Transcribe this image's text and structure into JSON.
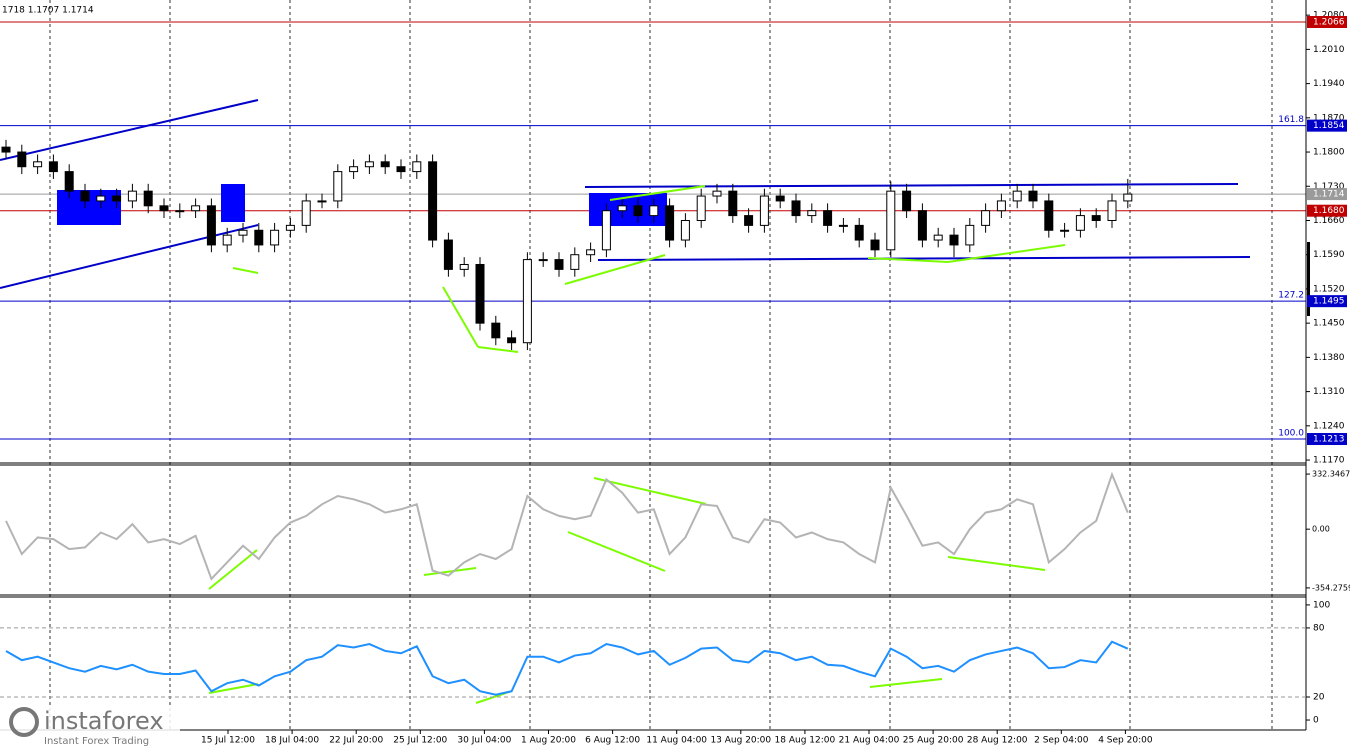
{
  "chart_data": {
    "type": "candlestick",
    "header": "1718 1.1707 1.1714",
    "up_color": "#ffffff",
    "down_color": "#000000",
    "ylim": [
      1.1166,
      1.2111
    ],
    "yticks": [
      {
        "value": 1.208,
        "label": "1.2080"
      },
      {
        "value": 1.201,
        "label": "1.2010"
      },
      {
        "value": 1.194,
        "label": "1.1940"
      },
      {
        "value": 1.187,
        "label": "1.1870"
      },
      {
        "value": 1.18,
        "label": "1.1800"
      },
      {
        "value": 1.173,
        "label": "1.1730"
      },
      {
        "value": 1.166,
        "label": "1.1660"
      },
      {
        "value": 1.159,
        "label": "1.1590"
      },
      {
        "value": 1.152,
        "label": "1.1520"
      },
      {
        "value": 1.145,
        "label": "1.1450"
      },
      {
        "value": 1.138,
        "label": "1.1380"
      },
      {
        "value": 1.131,
        "label": "1.1310"
      },
      {
        "value": 1.124,
        "label": "1.1240"
      },
      {
        "value": 1.117,
        "label": "1.1170"
      }
    ],
    "levels": [
      {
        "value": 1.2066,
        "label": "1.2066",
        "color": "#c00000"
      },
      {
        "value": 1.1854,
        "label": "1.1854",
        "color": "#0000c8",
        "fib": "161.8"
      },
      {
        "value": 1.1714,
        "label": "1.1714",
        "color": "#9a9a9a"
      },
      {
        "value": 1.168,
        "label": "1.1680",
        "color": "#c00000"
      },
      {
        "value": 1.1495,
        "label": "1.1495",
        "color": "#0000c8",
        "fib": "127.2"
      },
      {
        "value": 1.1213,
        "label": "1.1213",
        "color": "#0000c8",
        "fib": "100.0"
      }
    ],
    "candles": [
      [
        1.181,
        1.1825,
        1.1785,
        1.18
      ],
      [
        1.18,
        1.1815,
        1.1755,
        1.177
      ],
      [
        1.177,
        1.1795,
        1.1755,
        1.178
      ],
      [
        1.178,
        1.1795,
        1.1745,
        1.176
      ],
      [
        1.176,
        1.1775,
        1.1705,
        1.172
      ],
      [
        1.172,
        1.1735,
        1.1685,
        1.17
      ],
      [
        1.17,
        1.1725,
        1.1685,
        1.171
      ],
      [
        1.171,
        1.1725,
        1.1685,
        1.17
      ],
      [
        1.17,
        1.1735,
        1.1685,
        1.172
      ],
      [
        1.172,
        1.1735,
        1.1675,
        1.169
      ],
      [
        1.169,
        1.1705,
        1.1665,
        1.168
      ],
      [
        1.168,
        1.1695,
        1.1665,
        1.168
      ],
      [
        1.168,
        1.1705,
        1.1665,
        1.169
      ],
      [
        1.169,
        1.1705,
        1.1595,
        1.161
      ],
      [
        1.161,
        1.1645,
        1.1595,
        1.163
      ],
      [
        1.163,
        1.1655,
        1.1615,
        1.164
      ],
      [
        1.164,
        1.1655,
        1.1595,
        1.161
      ],
      [
        1.161,
        1.1655,
        1.1595,
        1.164
      ],
      [
        1.164,
        1.1665,
        1.1625,
        1.165
      ],
      [
        1.165,
        1.1715,
        1.1635,
        1.17
      ],
      [
        1.17,
        1.1715,
        1.1685,
        1.17
      ],
      [
        1.17,
        1.1775,
        1.1685,
        1.176
      ],
      [
        1.176,
        1.1785,
        1.1745,
        1.177
      ],
      [
        1.177,
        1.1795,
        1.1755,
        1.178
      ],
      [
        1.178,
        1.1795,
        1.1755,
        1.177
      ],
      [
        1.177,
        1.1785,
        1.1745,
        1.176
      ],
      [
        1.176,
        1.1795,
        1.1745,
        1.178
      ],
      [
        1.178,
        1.1795,
        1.1605,
        1.162
      ],
      [
        1.162,
        1.1635,
        1.1545,
        1.156
      ],
      [
        1.156,
        1.1585,
        1.1545,
        1.157
      ],
      [
        1.157,
        1.1585,
        1.1435,
        1.145
      ],
      [
        1.145,
        1.1465,
        1.1405,
        1.142
      ],
      [
        1.142,
        1.1435,
        1.1395,
        1.141
      ],
      [
        1.141,
        1.1595,
        1.1395,
        1.158
      ],
      [
        1.158,
        1.1595,
        1.1565,
        1.158
      ],
      [
        1.158,
        1.1595,
        1.1545,
        1.156
      ],
      [
        1.156,
        1.1605,
        1.1545,
        1.159
      ],
      [
        1.159,
        1.1615,
        1.1575,
        1.16
      ],
      [
        1.16,
        1.1695,
        1.1585,
        1.168
      ],
      [
        1.168,
        1.1705,
        1.1665,
        1.169
      ],
      [
        1.169,
        1.1705,
        1.1655,
        1.167
      ],
      [
        1.167,
        1.1705,
        1.1655,
        1.169
      ],
      [
        1.169,
        1.1705,
        1.1605,
        1.162
      ],
      [
        1.162,
        1.1675,
        1.1605,
        1.166
      ],
      [
        1.166,
        1.1725,
        1.1645,
        1.171
      ],
      [
        1.171,
        1.1735,
        1.1695,
        1.172
      ],
      [
        1.172,
        1.1735,
        1.1655,
        1.167
      ],
      [
        1.167,
        1.1685,
        1.1635,
        1.165
      ],
      [
        1.165,
        1.1725,
        1.1635,
        1.171
      ],
      [
        1.171,
        1.1725,
        1.1685,
        1.17
      ],
      [
        1.17,
        1.1715,
        1.1655,
        1.167
      ],
      [
        1.167,
        1.1695,
        1.1655,
        1.168
      ],
      [
        1.168,
        1.1695,
        1.1635,
        1.165
      ],
      [
        1.165,
        1.1665,
        1.1635,
        1.165
      ],
      [
        1.165,
        1.1665,
        1.1605,
        1.162
      ],
      [
        1.162,
        1.1635,
        1.1585,
        1.16
      ],
      [
        1.16,
        1.174,
        1.1585,
        1.172
      ],
      [
        1.172,
        1.1735,
        1.1665,
        1.168
      ],
      [
        1.168,
        1.1695,
        1.1605,
        1.162
      ],
      [
        1.162,
        1.1645,
        1.1605,
        1.163
      ],
      [
        1.163,
        1.1645,
        1.1585,
        1.161
      ],
      [
        1.161,
        1.1665,
        1.1595,
        1.165
      ],
      [
        1.165,
        1.1695,
        1.1635,
        1.168
      ],
      [
        1.168,
        1.1715,
        1.1665,
        1.17
      ],
      [
        1.17,
        1.1735,
        1.1685,
        1.172
      ],
      [
        1.172,
        1.1735,
        1.1685,
        1.17
      ],
      [
        1.17,
        1.1715,
        1.1625,
        1.164
      ],
      [
        1.164,
        1.1655,
        1.1625,
        1.164
      ],
      [
        1.164,
        1.1685,
        1.1625,
        1.167
      ],
      [
        1.167,
        1.1685,
        1.1645,
        1.166
      ],
      [
        1.166,
        1.1715,
        1.1645,
        1.17
      ],
      [
        1.17,
        1.1745,
        1.1685,
        1.1714
      ]
    ],
    "x_labels": [
      "15 Jul 12:00",
      "18 Jul 04:00",
      "22 Jul 20:00",
      "25 Jul 12:00",
      "30 Jul 04:00",
      "1 Aug 20:00",
      "6 Aug 12:00",
      "11 Aug 04:00",
      "13 Aug 20:00",
      "18 Aug 12:00",
      "21 Aug 04:00",
      "25 Aug 20:00",
      "28 Aug 12:00",
      "2 Sep 04:00",
      "4 Sep 20:00"
    ],
    "cci": {
      "color": "#b4b4b4",
      "ylim": [
        -391,
        381
      ],
      "yticks": [
        {
          "value": 332.3467,
          "label": "332.3467"
        },
        {
          "value": 0,
          "label": "0.00"
        },
        {
          "value": -354.2759,
          "label": "-354.2759"
        }
      ],
      "values": [
        50,
        -150,
        -50,
        -60,
        -120,
        -110,
        -20,
        -60,
        30,
        -80,
        -60,
        -90,
        -40,
        -300,
        -200,
        -100,
        -180,
        -50,
        40,
        80,
        150,
        200,
        180,
        150,
        100,
        120,
        150,
        -250,
        -280,
        -200,
        -150,
        -180,
        -120,
        200,
        120,
        80,
        60,
        80,
        300,
        220,
        100,
        120,
        -150,
        -50,
        150,
        140,
        -50,
        -80,
        60,
        40,
        -50,
        -20,
        -60,
        -80,
        -150,
        -200,
        250,
        80,
        -100,
        -80,
        -150,
        0,
        100,
        120,
        180,
        150,
        -200,
        -120,
        -20,
        50,
        330,
        100
      ]
    },
    "rsi": {
      "color": "#1e90ff",
      "ylim": [
        -7.8,
        106
      ],
      "yticks": [
        0,
        20,
        80,
        100
      ],
      "levels": [
        20,
        80
      ],
      "values": [
        60,
        52,
        55,
        50,
        45,
        42,
        47,
        44,
        48,
        42,
        40,
        40,
        43,
        25,
        32,
        35,
        30,
        38,
        42,
        52,
        55,
        65,
        63,
        66,
        60,
        58,
        64,
        38,
        32,
        35,
        25,
        22,
        25,
        55,
        55,
        50,
        56,
        58,
        66,
        63,
        57,
        60,
        48,
        54,
        62,
        63,
        52,
        50,
        60,
        58,
        52,
        55,
        48,
        47,
        42,
        38,
        62,
        55,
        45,
        47,
        42,
        52,
        57,
        60,
        63,
        58,
        45,
        46,
        52,
        50,
        68,
        62
      ]
    },
    "watermark": {
      "brand": "instaforex",
      "tagline": "Instant Forex Trading"
    }
  }
}
